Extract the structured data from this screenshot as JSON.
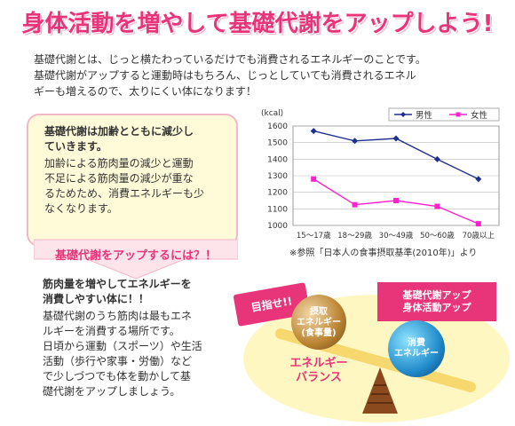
{
  "title": "身体活動を増やして基礎代謝をアップしよう!",
  "intro": {
    "line1": "基礎代謝とは、じっと横たわっているだけでも消費されるエネルギーのことです。",
    "line2": "基礎代謝がアップすると運動時はもちろん、じっとしていても消費されるエネル",
    "line3": "ギーも増えるので、太りにくい体になります！"
  },
  "bubble": {
    "head1": "基礎代謝は加齢とともに減少し",
    "head2": "ていきます。",
    "body1": "加齢による筋肉量の減少と運動",
    "body2": "不足による筋肉量の減少が重な",
    "body3": "るためため、消費エネルギーも少",
    "body4": "なくなります。"
  },
  "arrow_label": "基礎代謝をアップするには？！",
  "advice": {
    "head1": "筋肉量を増やしてエネルギーを",
    "head2": "消費しやすい体に！！",
    "body1": "基礎代謝のうち筋肉は最もエネ",
    "body2": "ルギーを消費する場所です。",
    "body3": "日頃から運動（スポーツ）や生活",
    "body4": "活動（歩行や家事・労働）など",
    "body5": "で少しづつでも体を動かして基",
    "body6": "礎代謝をアップしましょう。"
  },
  "chart_data": {
    "type": "line",
    "ylabel": "(kcal)",
    "ylim": [
      1000,
      1600
    ],
    "yticks": [
      "1600",
      "1500",
      "1400",
      "1300",
      "1200",
      "1100",
      "1000"
    ],
    "categories": [
      "15～17歳",
      "18～29歳",
      "30～49歳",
      "50～60歳",
      "70歳以上"
    ],
    "series": [
      {
        "name": "男性",
        "color": "#1f2f8f",
        "marker": "diamond",
        "values": [
          1570,
          1510,
          1525,
          1400,
          1280
        ]
      },
      {
        "name": "女性",
        "color": "#ff22cc",
        "marker": "square",
        "values": [
          1280,
          1125,
          1150,
          1115,
          1010
        ]
      }
    ],
    "legend": "top-right",
    "grid": true
  },
  "source": "※参照「日本人の食事摂取基準(2010年)」より",
  "illustration": {
    "stamp": "目指せ!!",
    "goal_line1": "基礎代謝アップ",
    "goal_line2": "身体活動アップ",
    "left_ball_line1": "摂取",
    "left_ball_line2": "エネルギー",
    "left_ball_line3": "(食事量)",
    "right_ball_line1": "消費",
    "right_ball_line2": "エネルギー",
    "balance_line1": "エネルギー",
    "balance_line2": "バランス",
    "colors": {
      "accent": "#e8357a",
      "bg_yellow": "#fff7c2",
      "beam": "#f7d86f"
    }
  }
}
